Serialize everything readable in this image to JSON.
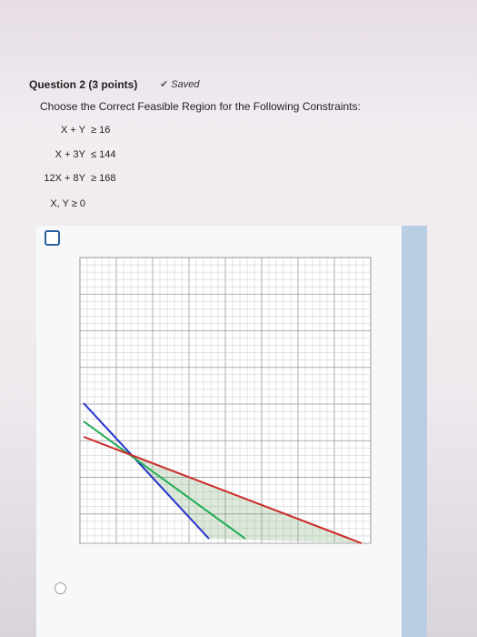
{
  "question": {
    "title": "Question 2 (3 points)",
    "status": "Saved",
    "prompt": "Choose the Correct Feasible Region for the Following Constraints:",
    "constraints": [
      {
        "lhs": "X + Y",
        "rhs": "≥ 16"
      },
      {
        "lhs": "X + 3Y",
        "rhs": "≤ 144"
      },
      {
        "lhs": "12X + 8Y",
        "rhs": "≥ 168"
      },
      {
        "lhs": "X, Y ≥ 0",
        "rhs": null
      }
    ]
  }
}
